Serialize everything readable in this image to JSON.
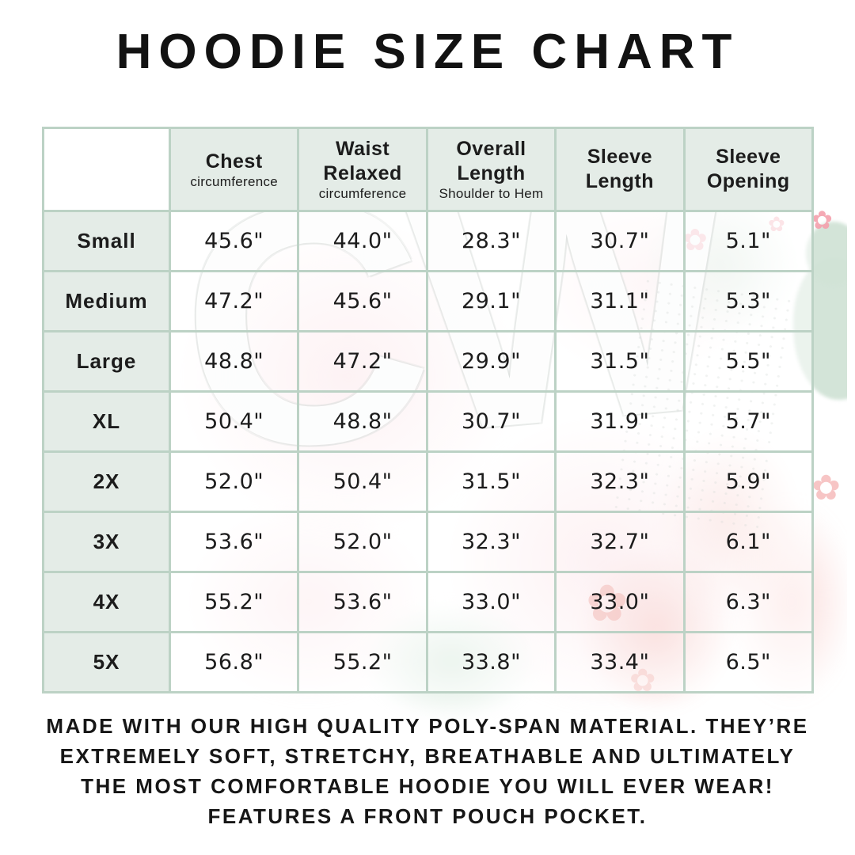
{
  "title": "HOODIE SIZE CHART",
  "watermark": {
    "letters": "CW"
  },
  "table": {
    "columns": [
      {
        "label": "Chest",
        "sub": "circumference"
      },
      {
        "label": "Waist Relaxed",
        "sub": "circumference"
      },
      {
        "label": "Overall Length",
        "sub": "Shoulder to Hem"
      },
      {
        "label": "Sleeve Length",
        "sub": ""
      },
      {
        "label": "Sleeve Opening",
        "sub": ""
      }
    ],
    "rows": [
      {
        "size": "Small",
        "values": [
          "45.6\"",
          "44.0\"",
          "28.3\"",
          "30.7\"",
          "5.1\""
        ]
      },
      {
        "size": "Medium",
        "values": [
          "47.2\"",
          "45.6\"",
          "29.1\"",
          "31.1\"",
          "5.3\""
        ]
      },
      {
        "size": "Large",
        "values": [
          "48.8\"",
          "47.2\"",
          "29.9\"",
          "31.5\"",
          "5.5\""
        ]
      },
      {
        "size": "XL",
        "values": [
          "50.4\"",
          "48.8\"",
          "30.7\"",
          "31.9\"",
          "5.7\""
        ]
      },
      {
        "size": "2X",
        "values": [
          "52.0\"",
          "50.4\"",
          "31.5\"",
          "32.3\"",
          "5.9\""
        ]
      },
      {
        "size": "3X",
        "values": [
          "53.6\"",
          "52.0\"",
          "32.3\"",
          "32.7\"",
          "6.1\""
        ]
      },
      {
        "size": "4X",
        "values": [
          "55.2\"",
          "53.6\"",
          "33.0\"",
          "33.0\"",
          "6.3\""
        ]
      },
      {
        "size": "5X",
        "values": [
          "56.8\"",
          "55.2\"",
          "33.8\"",
          "33.4\"",
          "6.5\""
        ]
      }
    ]
  },
  "footer": {
    "lines": [
      "MADE WITH OUR HIGH QUALITY POLY-SPAN MATERIAL. THEY’RE",
      "EXTREMELY SOFT, STRETCHY, BREATHABLE AND ULTIMATELY",
      "THE MOST COMFORTABLE HOODIE YOU WILL EVER WEAR!",
      "FEATURES A FRONT POUCH POCKET."
    ]
  },
  "colors": {
    "border": "#bcd2c5",
    "header_cell": "#e4ece7",
    "text": "#1c1c1c",
    "watermark_pink": "#f7cbd2",
    "watermark_green": "#d0e2d5",
    "watermark_red": "#e15f55"
  },
  "chart_data": {
    "type": "table",
    "title": "HOODIE SIZE CHART",
    "columns": [
      "Chest circumference",
      "Waist Relaxed circumference",
      "Overall Length Shoulder to Hem",
      "Sleeve Length",
      "Sleeve Opening"
    ],
    "row_labels": [
      "Small",
      "Medium",
      "Large",
      "XL",
      "2X",
      "3X",
      "4X",
      "5X"
    ],
    "values_inches": [
      [
        45.6,
        44.0,
        28.3,
        30.7,
        5.1
      ],
      [
        47.2,
        45.6,
        29.1,
        31.1,
        5.3
      ],
      [
        48.8,
        47.2,
        29.9,
        31.5,
        5.5
      ],
      [
        50.4,
        48.8,
        30.7,
        31.9,
        5.7
      ],
      [
        52.0,
        50.4,
        31.5,
        32.3,
        5.9
      ],
      [
        53.6,
        52.0,
        32.3,
        32.7,
        6.1
      ],
      [
        55.2,
        53.6,
        33.0,
        33.0,
        6.3
      ],
      [
        56.8,
        55.2,
        33.8,
        33.4,
        6.5
      ]
    ]
  }
}
